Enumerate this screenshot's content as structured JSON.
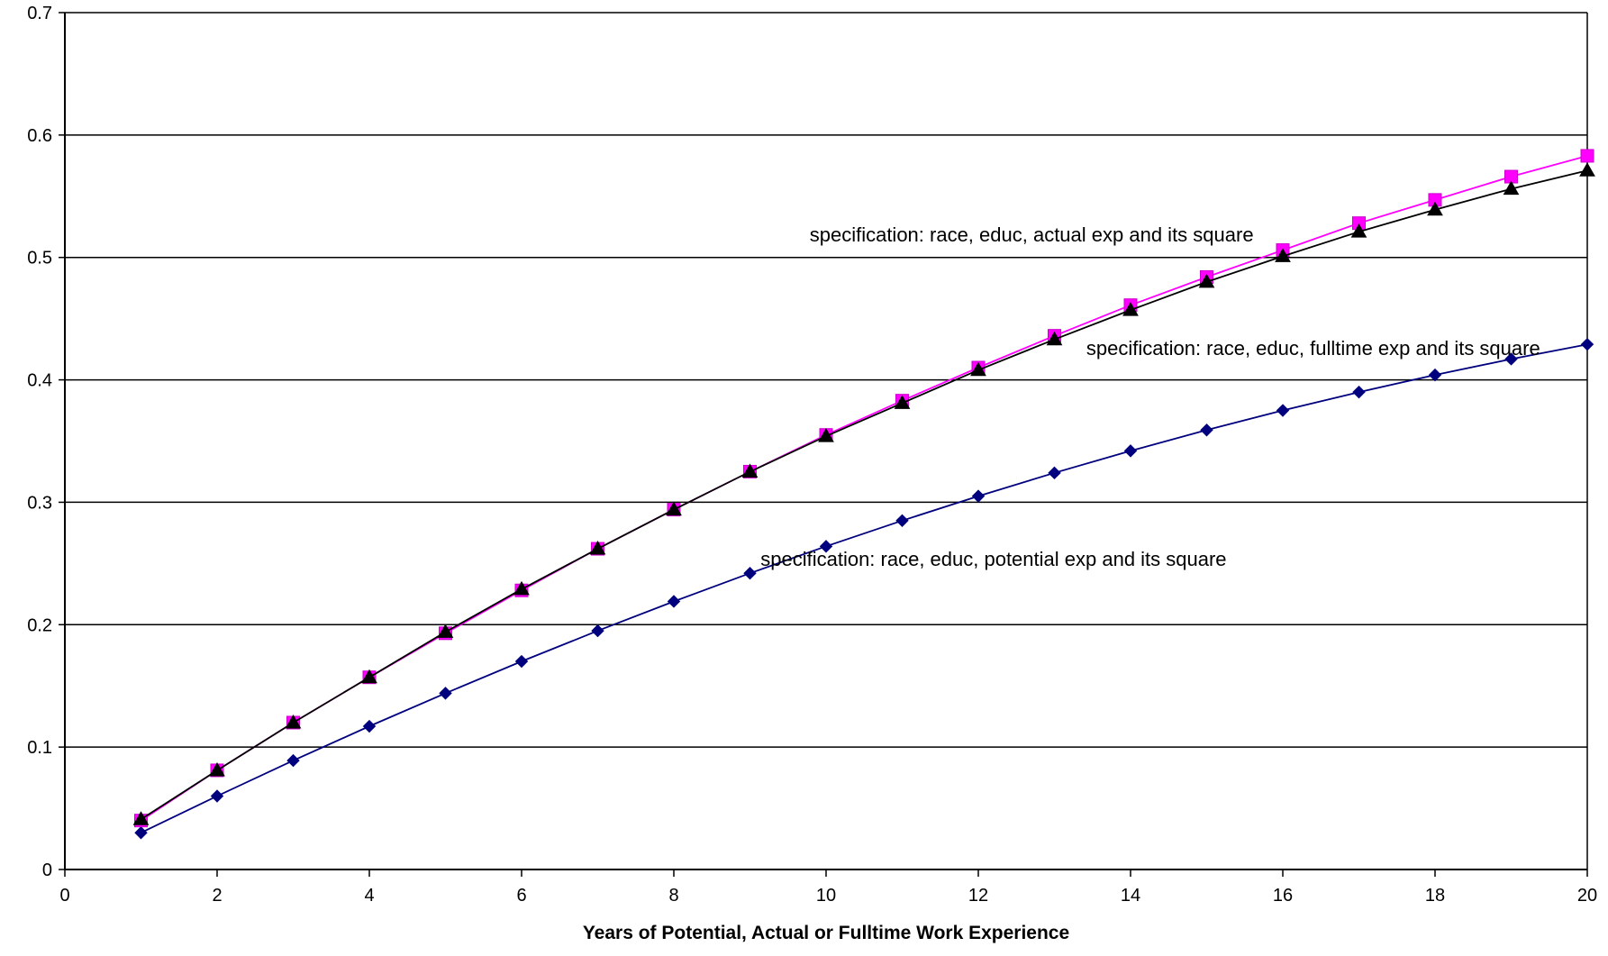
{
  "chart_data": {
    "type": "line",
    "title": "",
    "xlabel": "Years of Potential, Actual or Fulltime Work Experience",
    "ylabel": "",
    "xlim": [
      0,
      20
    ],
    "ylim": [
      0,
      0.7
    ],
    "xticks": [
      "0",
      "2",
      "4",
      "6",
      "8",
      "10",
      "12",
      "14",
      "16",
      "18",
      "20"
    ],
    "yticks": [
      "0",
      "0.1",
      "0.2",
      "0.3",
      "0.4",
      "0.5",
      "0.6",
      "0.7"
    ],
    "grid": "horizontal",
    "x": [
      1,
      2,
      3,
      4,
      5,
      6,
      7,
      8,
      9,
      10,
      11,
      12,
      13,
      14,
      15,
      16,
      17,
      18,
      19,
      20
    ],
    "series": [
      {
        "color": "#00007f",
        "marker": "diamond",
        "values": [
          0.03,
          0.06,
          0.089,
          0.117,
          0.144,
          0.17,
          0.195,
          0.219,
          0.242,
          0.264,
          0.285,
          0.305,
          0.324,
          0.342,
          0.359,
          0.375,
          0.39,
          0.404,
          0.417,
          0.429
        ]
      },
      {
        "color": "#ff00ff",
        "marker": "square",
        "values": [
          0.04,
          0.081,
          0.12,
          0.157,
          0.193,
          0.228,
          0.262,
          0.294,
          0.325,
          0.355,
          0.383,
          0.41,
          0.436,
          0.461,
          0.484,
          0.506,
          0.528,
          0.547,
          0.566,
          0.583
        ]
      },
      {
        "color": "#000000",
        "marker": "triangle",
        "values": [
          0.041,
          0.081,
          0.12,
          0.157,
          0.194,
          0.229,
          0.262,
          0.294,
          0.325,
          0.354,
          0.381,
          0.408,
          0.433,
          0.457,
          0.48,
          0.501,
          0.521,
          0.539,
          0.556,
          0.571
        ]
      }
    ],
    "annotations": [
      {
        "text": "specification: race, educ, actual exp and its square",
        "x": 12.7,
        "y": 0.519
      },
      {
        "text": "specification: race, educ, fulltime exp and its square",
        "x": 16.4,
        "y": 0.426
      },
      {
        "text": "specification: race, educ, potential exp and its square",
        "x": 12.2,
        "y": 0.254
      }
    ]
  }
}
